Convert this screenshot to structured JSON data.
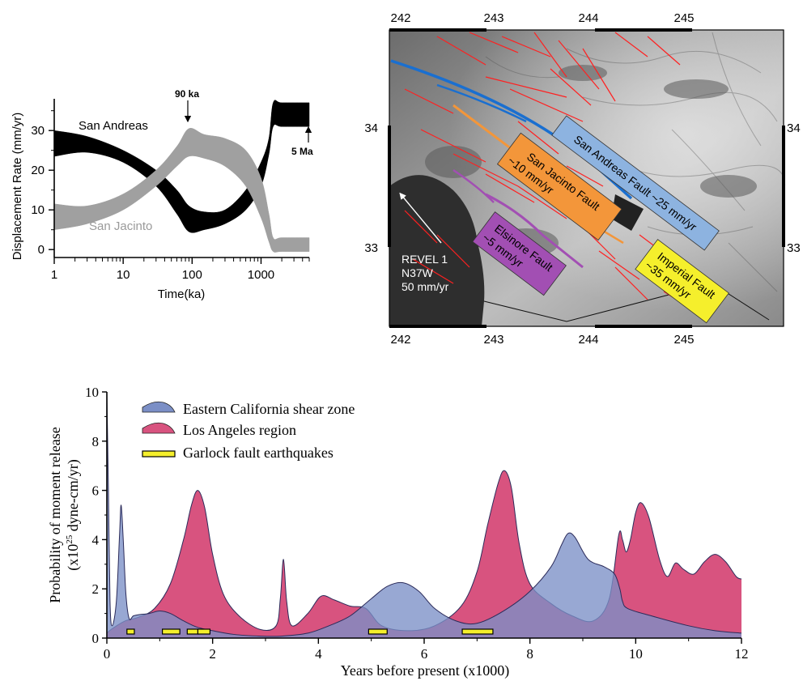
{
  "chart_data": [
    {
      "type": "area",
      "panel": "top-left",
      "xscale": "log",
      "xlim": [
        1,
        5000
      ],
      "ylim": [
        -2,
        38
      ],
      "xlabel": "Time(ka)",
      "ylabel": "Displacement Rate (mm/yr)",
      "xticks": [
        {
          "value": 1,
          "label": "1"
        },
        {
          "value": 10,
          "label": "10"
        },
        {
          "value": 100,
          "label": "100"
        },
        {
          "value": 1000,
          "label": "1000"
        }
      ],
      "yticks": [
        {
          "value": 0,
          "label": "0"
        },
        {
          "value": 10,
          "label": "10"
        },
        {
          "value": 20,
          "label": "20"
        },
        {
          "value": 30,
          "label": "30"
        }
      ],
      "series": [
        {
          "name": "San Andreas",
          "color": "#000000",
          "x": [
            1,
            3,
            10,
            30,
            60,
            90,
            150,
            300,
            600,
            1000,
            1300,
            1500,
            2000,
            5000
          ],
          "upper": [
            30,
            28.5,
            25,
            20,
            15,
            11,
            9.5,
            10,
            15,
            22,
            28,
            37,
            37,
            37
          ],
          "lower": [
            23.5,
            24.5,
            22,
            16,
            9,
            4.5,
            5,
            6.5,
            10,
            16,
            24,
            31,
            31,
            31
          ]
        },
        {
          "name": "San Jacinto",
          "color": "#a0a0a0",
          "x": [
            1,
            3,
            10,
            30,
            60,
            90,
            150,
            300,
            600,
            1000,
            1300,
            1500,
            2000,
            5000
          ],
          "upper": [
            11.5,
            11,
            14,
            20,
            26,
            30.5,
            29,
            28,
            25,
            18,
            9,
            3,
            3,
            3
          ],
          "lower": [
            5,
            6.5,
            10,
            16,
            21,
            23.5,
            23,
            21,
            16,
            8,
            2,
            -0.5,
            -0.5,
            -0.5
          ]
        }
      ],
      "annotations": [
        {
          "text": "90 ka",
          "x": 90
        },
        {
          "text": "5 Ma",
          "x": 5000
        }
      ]
    },
    {
      "type": "map",
      "panel": "top-right",
      "xticks": [
        "242",
        "243",
        "244",
        "245"
      ],
      "yticks": [
        "34",
        "33"
      ],
      "labels": [
        {
          "text": "San Andreas Fault ~25 mm/yr",
          "color": "#8db3e0"
        },
        {
          "text": "San Jacinto Fault",
          "sub": "~10 mm/yr",
          "color": "#f3963a"
        },
        {
          "text": "Elsinore Fault",
          "sub": "~5 mm/yr",
          "color": "#a24fb3"
        },
        {
          "text": "Imperial Fault",
          "sub": "~35 mm/yr",
          "color": "#f5ef2c"
        }
      ],
      "arrow_label": [
        "REVEL 1",
        "N37W",
        "50 mm/yr"
      ]
    },
    {
      "type": "area",
      "panel": "bottom",
      "xlim": [
        0,
        12
      ],
      "ylim": [
        0,
        10
      ],
      "xlabel": "Years before present (x1000)",
      "ylabel_line1": "Probability of moment release",
      "ylabel_line2_prefix": "(x10",
      "ylabel_line2_sup": "25",
      "ylabel_line2_suffix": " dyne-cm/yr)",
      "xticks": [
        {
          "value": 0,
          "label": "0"
        },
        {
          "value": 2,
          "label": "2"
        },
        {
          "value": 4,
          "label": "4"
        },
        {
          "value": 6,
          "label": "6"
        },
        {
          "value": 8,
          "label": "8"
        },
        {
          "value": 10,
          "label": "10"
        },
        {
          "value": 12,
          "label": "12"
        }
      ],
      "yticks": [
        {
          "value": 0,
          "label": "0"
        },
        {
          "value": 2,
          "label": "2"
        },
        {
          "value": 4,
          "label": "4"
        },
        {
          "value": 6,
          "label": "6"
        },
        {
          "value": 8,
          "label": "8"
        },
        {
          "value": 10,
          "label": "10"
        }
      ],
      "legend": [
        {
          "label": "Eastern California shear zone",
          "color": "#7b8fc6"
        },
        {
          "label": "Los Angeles region",
          "color": "#d8537f"
        },
        {
          "label": "Garlock fault earthquakes",
          "color": "#f5ef2c"
        }
      ],
      "series": [
        {
          "name": "Los Angeles region",
          "color": "#d8537f",
          "x": [
            0,
            0.05,
            0.15,
            0.35,
            0.6,
            0.9,
            1.2,
            1.45,
            1.6,
            1.72,
            1.85,
            2.0,
            2.2,
            2.5,
            2.9,
            3.2,
            3.28,
            3.34,
            3.4,
            3.5,
            3.8,
            4.05,
            4.3,
            4.6,
            4.9,
            5.2,
            5.7,
            6.2,
            6.7,
            7.0,
            7.2,
            7.4,
            7.52,
            7.65,
            7.8,
            8.0,
            8.4,
            8.8,
            9.2,
            9.5,
            9.68,
            9.75,
            9.82,
            9.9,
            10.0,
            10.1,
            10.25,
            10.45,
            10.6,
            10.75,
            10.9,
            11.1,
            11.3,
            11.5,
            11.7,
            11.9,
            12.0
          ],
          "y": [
            0.2,
            0.3,
            0.45,
            0.7,
            0.85,
            1.2,
            2.2,
            4.0,
            5.4,
            6.0,
            5.3,
            3.4,
            1.8,
            0.9,
            0.35,
            0.5,
            1.6,
            3.2,
            1.5,
            0.5,
            1.0,
            1.7,
            1.55,
            1.3,
            1.2,
            0.5,
            0.3,
            0.5,
            1.3,
            2.7,
            4.6,
            6.3,
            6.8,
            6.1,
            3.8,
            2.2,
            1.4,
            0.9,
            0.7,
            1.6,
            4.2,
            4.0,
            3.5,
            4.0,
            5.1,
            5.5,
            4.9,
            3.2,
            2.5,
            3.05,
            2.8,
            2.6,
            3.1,
            3.4,
            3.1,
            2.5,
            2.4
          ]
        },
        {
          "name": "Eastern California shear zone",
          "color": "#7b8fc6",
          "x": [
            0,
            0.03,
            0.06,
            0.1,
            0.18,
            0.24,
            0.27,
            0.31,
            0.36,
            0.42,
            0.5,
            0.6,
            0.8,
            1.0,
            1.2,
            1.45,
            1.7,
            2.0,
            2.4,
            2.9,
            3.3,
            3.8,
            4.2,
            4.6,
            5.0,
            5.3,
            5.6,
            5.9,
            6.2,
            6.6,
            7.0,
            7.5,
            8.0,
            8.4,
            8.6,
            8.72,
            8.85,
            9.1,
            9.4,
            9.6,
            9.7,
            9.75,
            9.85,
            10.3,
            11.0,
            11.5,
            12.0
          ],
          "y": [
            10,
            6,
            1.5,
            0.5,
            1.5,
            4.2,
            5.4,
            4.0,
            1.8,
            0.8,
            0.9,
            0.95,
            1.0,
            1.1,
            1.0,
            0.7,
            0.45,
            0.3,
            0.15,
            0.08,
            0.08,
            0.2,
            0.5,
            0.9,
            1.6,
            2.1,
            2.25,
            1.9,
            1.2,
            0.7,
            0.6,
            1.1,
            1.9,
            2.9,
            3.8,
            4.25,
            4.1,
            3.2,
            2.9,
            2.6,
            2.0,
            1.5,
            1.2,
            0.9,
            0.5,
            0.3,
            0.2
          ]
        }
      ],
      "garlock_events": [
        {
          "start": 0.38,
          "end": 0.52
        },
        {
          "start": 1.05,
          "end": 1.38
        },
        {
          "start": 1.52,
          "end": 1.74
        },
        {
          "start": 1.72,
          "end": 1.95
        },
        {
          "start": 4.95,
          "end": 5.3
        },
        {
          "start": 6.72,
          "end": 7.3
        }
      ]
    }
  ],
  "top_left_labels": {
    "san_andreas": "San Andreas",
    "san_jacinto": "San Jacinto",
    "ka90": "90 ka",
    "ma5": "5 Ma"
  }
}
